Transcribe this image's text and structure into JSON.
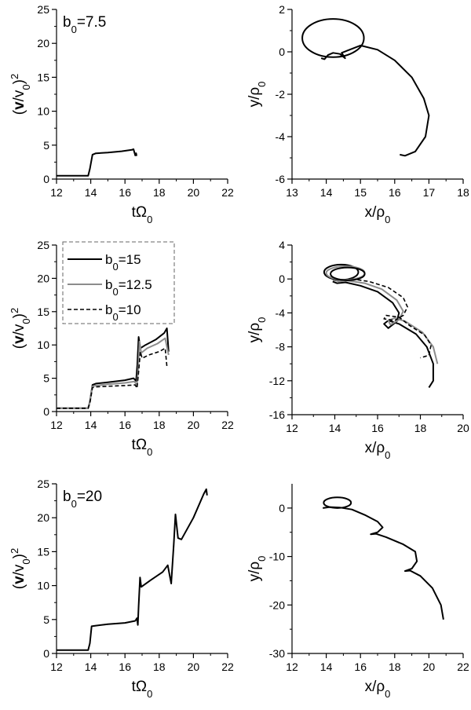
{
  "chart_data": [
    {
      "id": "p1",
      "type": "line",
      "xlabel": {
        "main": "tΩ",
        "sub": "0"
      },
      "ylabel": {
        "main": "(",
        "bold": "v",
        "mid": "/v",
        "sub": "0",
        "end": ")",
        "sup": "2"
      },
      "xlim": [
        12,
        22
      ],
      "ylim": [
        0,
        25
      ],
      "xticks": [
        12,
        14,
        16,
        18,
        20,
        22
      ],
      "yticks": [
        0,
        5,
        10,
        15,
        20,
        25
      ],
      "annotation": {
        "main": "b",
        "sub": "0",
        "rest": "=7.5"
      },
      "series": [
        {
          "style": "solid-black",
          "points": [
            [
              12.0,
              0.5
            ],
            [
              13.85,
              0.5
            ],
            [
              13.95,
              1.5
            ],
            [
              14.1,
              3.6
            ],
            [
              14.3,
              3.8
            ],
            [
              15.0,
              3.9
            ],
            [
              15.8,
              4.1
            ],
            [
              16.4,
              4.3
            ],
            [
              16.5,
              4.4
            ],
            [
              16.6,
              3.5
            ],
            [
              16.65,
              3.8
            ],
            [
              16.68,
              3.4
            ]
          ]
        }
      ]
    },
    {
      "id": "p2",
      "type": "line",
      "xlabel": {
        "main": "x/ρ",
        "sub": "0"
      },
      "ylabel": {
        "main": "y/ρ",
        "sub": "0"
      },
      "xlim": [
        13,
        18
      ],
      "ylim": [
        -6,
        2
      ],
      "xticks": [
        13,
        14,
        15,
        16,
        17,
        18
      ],
      "yticks": [
        -6,
        -4,
        -2,
        0,
        2
      ],
      "series": [
        {
          "style": "solid-black",
          "points": [
            [
              13.85,
              -0.3
            ],
            [
              13.95,
              -0.35
            ],
            [
              14.05,
              -0.15
            ],
            [
              14.2,
              -0.05
            ],
            [
              14.4,
              -0.1
            ],
            [
              14.55,
              -0.3
            ],
            [
              14.45,
              -0.05
            ],
            [
              14.6,
              0.05
            ],
            [
              15.0,
              0.3
            ],
            [
              15.5,
              0.1
            ],
            [
              16.0,
              -0.4
            ],
            [
              16.5,
              -1.2
            ],
            [
              16.85,
              -2.2
            ],
            [
              17.0,
              -3.0
            ],
            [
              16.9,
              -4.0
            ],
            [
              16.6,
              -4.7
            ],
            [
              16.3,
              -4.9
            ],
            [
              16.15,
              -4.85
            ]
          ]
        },
        {
          "style": "solid-black",
          "ellipse": {
            "cx": 14.2,
            "cy": 0.65,
            "rx": 0.9,
            "ry": 0.9
          }
        }
      ]
    },
    {
      "id": "p3",
      "type": "line",
      "xlabel": {
        "main": "tΩ",
        "sub": "0"
      },
      "ylabel": {
        "main": "(",
        "bold": "v",
        "mid": "/v",
        "sub": "0",
        "end": ")",
        "sup": "2"
      },
      "xlim": [
        12,
        22
      ],
      "ylim": [
        0,
        25
      ],
      "xticks": [
        12,
        14,
        16,
        18,
        20,
        22
      ],
      "yticks": [
        0,
        5,
        10,
        15,
        20,
        25
      ],
      "legend": [
        {
          "main": "b",
          "sub": "0",
          "rest": "=15",
          "style": "solid-black"
        },
        {
          "main": "b",
          "sub": "0",
          "rest": "=12.5",
          "style": "solid-gray"
        },
        {
          "main": "b",
          "sub": "0",
          "rest": "=10",
          "style": "dashed-black"
        }
      ],
      "series": [
        {
          "style": "solid-black",
          "points": [
            [
              12.0,
              0.5
            ],
            [
              13.85,
              0.5
            ],
            [
              13.95,
              1.5
            ],
            [
              14.1,
              4.0
            ],
            [
              14.3,
              4.2
            ],
            [
              15.0,
              4.4
            ],
            [
              16.0,
              4.7
            ],
            [
              16.5,
              5.0
            ],
            [
              16.65,
              4.6
            ],
            [
              16.72,
              7.0
            ],
            [
              16.8,
              11.2
            ],
            [
              16.9,
              9.5
            ],
            [
              17.2,
              10.0
            ],
            [
              17.8,
              10.8
            ],
            [
              18.3,
              11.8
            ],
            [
              18.45,
              12.5
            ],
            [
              18.55,
              9.0
            ]
          ]
        },
        {
          "style": "solid-gray",
          "points": [
            [
              12.0,
              0.5
            ],
            [
              13.85,
              0.5
            ],
            [
              13.95,
              1.4
            ],
            [
              14.1,
              3.8
            ],
            [
              14.3,
              3.9
            ],
            [
              15.0,
              4.1
            ],
            [
              16.0,
              4.3
            ],
            [
              16.55,
              4.5
            ],
            [
              16.7,
              4.0
            ],
            [
              16.78,
              6.5
            ],
            [
              16.85,
              10.5
            ],
            [
              16.95,
              8.8
            ],
            [
              17.3,
              9.5
            ],
            [
              17.9,
              10.2
            ],
            [
              18.35,
              11.0
            ],
            [
              18.55,
              8.5
            ]
          ]
        },
        {
          "style": "dashed-black",
          "points": [
            [
              12.0,
              0.5
            ],
            [
              13.85,
              0.5
            ],
            [
              13.95,
              1.3
            ],
            [
              14.1,
              3.6
            ],
            [
              14.3,
              3.7
            ],
            [
              15.0,
              3.8
            ],
            [
              16.0,
              3.9
            ],
            [
              16.6,
              4.0
            ],
            [
              16.7,
              3.5
            ],
            [
              16.8,
              6.0
            ],
            [
              16.9,
              9.0
            ],
            [
              17.0,
              8.0
            ],
            [
              17.4,
              8.5
            ],
            [
              18.0,
              9.0
            ],
            [
              18.35,
              9.5
            ],
            [
              18.45,
              6.8
            ]
          ]
        }
      ]
    },
    {
      "id": "p4",
      "type": "line",
      "xlabel": {
        "main": "x/ρ",
        "sub": "0"
      },
      "ylabel": {
        "main": "y/ρ",
        "sub": "0"
      },
      "xlim": [
        12,
        20
      ],
      "ylim": [
        -16,
        4
      ],
      "xticks": [
        12,
        14,
        16,
        18,
        20
      ],
      "yticks": [
        -16,
        -12,
        -8,
        -4,
        0,
        4
      ],
      "series": [
        {
          "style": "solid-black",
          "points": [
            [
              13.9,
              -0.3
            ],
            [
              14.1,
              -0.5
            ],
            [
              14.5,
              -0.4
            ],
            [
              15.2,
              -0.8
            ],
            [
              16.0,
              -1.5
            ],
            [
              16.7,
              -2.8
            ],
            [
              17.0,
              -4.0
            ],
            [
              16.9,
              -5.0
            ],
            [
              16.5,
              -5.8
            ],
            [
              16.3,
              -5.3
            ],
            [
              16.5,
              -4.9
            ],
            [
              17.0,
              -5.3
            ],
            [
              17.8,
              -6.5
            ],
            [
              18.3,
              -8.0
            ],
            [
              18.6,
              -10.0
            ],
            [
              18.6,
              -12.0
            ],
            [
              18.4,
              -12.8
            ]
          ]
        },
        {
          "style": "solid-gray",
          "points": [
            [
              13.9,
              -0.1
            ],
            [
              14.2,
              -0.3
            ],
            [
              14.6,
              -0.2
            ],
            [
              15.4,
              -0.5
            ],
            [
              16.2,
              -1.2
            ],
            [
              16.9,
              -2.5
            ],
            [
              17.2,
              -3.8
            ],
            [
              17.0,
              -4.8
            ],
            [
              16.6,
              -5.4
            ],
            [
              16.5,
              -4.9
            ],
            [
              16.8,
              -4.6
            ],
            [
              17.3,
              -5.0
            ],
            [
              18.1,
              -6.3
            ],
            [
              18.6,
              -8.0
            ],
            [
              18.8,
              -10.0
            ]
          ]
        },
        {
          "style": "dashed-black",
          "points": [
            [
              13.9,
              0.1
            ],
            [
              14.3,
              -0.1
            ],
            [
              14.8,
              0.0
            ],
            [
              15.6,
              -0.3
            ],
            [
              16.5,
              -1.0
            ],
            [
              17.2,
              -2.2
            ],
            [
              17.4,
              -3.3
            ],
            [
              17.2,
              -4.3
            ],
            [
              16.8,
              -4.9
            ],
            [
              16.3,
              -4.7
            ],
            [
              16.4,
              -4.3
            ],
            [
              17.0,
              -4.5
            ],
            [
              17.5,
              -5.5
            ],
            [
              18.2,
              -6.6
            ],
            [
              18.5,
              -7.8
            ],
            [
              18.4,
              -9.0
            ],
            [
              18.0,
              -9.3
            ]
          ]
        },
        {
          "style": "solid-black",
          "ellipse": {
            "cx": 14.3,
            "cy": 0.8,
            "rx": 0.8,
            "ry": 0.9
          }
        },
        {
          "style": "solid-gray",
          "ellipse": {
            "cx": 14.5,
            "cy": 0.7,
            "rx": 0.9,
            "ry": 0.8
          }
        },
        {
          "style": "solid-black",
          "ellipse": {
            "cx": 14.6,
            "cy": 0.6,
            "rx": 0.8,
            "ry": 0.75
          }
        }
      ]
    },
    {
      "id": "p5",
      "type": "line",
      "xlabel": {
        "main": "tΩ",
        "sub": "0"
      },
      "ylabel": {
        "main": "(",
        "bold": "v",
        "mid": "/v",
        "sub": "0",
        "end": ")",
        "sup": "2"
      },
      "xlim": [
        12,
        22
      ],
      "ylim": [
        0,
        25
      ],
      "xticks": [
        12,
        14,
        16,
        18,
        20,
        22
      ],
      "yticks": [
        0,
        5,
        10,
        15,
        20,
        25
      ],
      "annotation": {
        "main": "b",
        "sub": "0",
        "rest": "=20"
      },
      "series": [
        {
          "style": "solid-black",
          "points": [
            [
              12.0,
              0.5
            ],
            [
              13.85,
              0.5
            ],
            [
              13.95,
              1.5
            ],
            [
              14.05,
              4.0
            ],
            [
              14.3,
              4.1
            ],
            [
              15.0,
              4.3
            ],
            [
              16.0,
              4.5
            ],
            [
              16.6,
              4.8
            ],
            [
              16.7,
              5.2
            ],
            [
              16.75,
              4.2
            ],
            [
              16.8,
              7.0
            ],
            [
              16.88,
              11.2
            ],
            [
              16.95,
              9.8
            ],
            [
              17.5,
              10.8
            ],
            [
              18.2,
              12.0
            ],
            [
              18.5,
              13.0
            ],
            [
              18.7,
              10.3
            ],
            [
              18.85,
              16.0
            ],
            [
              18.95,
              20.5
            ],
            [
              19.1,
              17.0
            ],
            [
              19.3,
              16.8
            ],
            [
              20.0,
              20.0
            ],
            [
              20.6,
              23.5
            ],
            [
              20.75,
              24.2
            ],
            [
              20.8,
              23.3
            ]
          ]
        }
      ]
    },
    {
      "id": "p6",
      "type": "line",
      "xlabel": {
        "main": "x/ρ",
        "sub": "0"
      },
      "ylabel": {
        "main": "y/ρ",
        "sub": "0"
      },
      "xlim": [
        12,
        22
      ],
      "ylim": [
        -30,
        5
      ],
      "xticks": [
        12,
        14,
        16,
        18,
        20,
        22
      ],
      "yticks": [
        -30,
        -20,
        -10,
        0
      ],
      "series": [
        {
          "style": "solid-black",
          "points": [
            [
              13.8,
              0.0
            ],
            [
              14.2,
              0.2
            ],
            [
              14.8,
              0.1
            ],
            [
              15.5,
              -0.3
            ],
            [
              16.3,
              -1.5
            ],
            [
              17.0,
              -2.8
            ],
            [
              17.3,
              -4.0
            ],
            [
              17.0,
              -5.0
            ],
            [
              16.6,
              -5.4
            ],
            [
              16.9,
              -5.3
            ],
            [
              17.5,
              -6.0
            ],
            [
              18.5,
              -7.5
            ],
            [
              19.2,
              -9.0
            ],
            [
              19.3,
              -11.0
            ],
            [
              19.0,
              -12.5
            ],
            [
              18.6,
              -13.0
            ],
            [
              18.9,
              -12.9
            ],
            [
              19.5,
              -14.0
            ],
            [
              20.2,
              -16.5
            ],
            [
              20.7,
              -20.0
            ],
            [
              20.85,
              -23.0
            ]
          ]
        },
        {
          "style": "solid-black",
          "ellipse": {
            "cx": 14.65,
            "cy": 1.1,
            "rx": 0.8,
            "ry": 1.1
          }
        }
      ]
    }
  ]
}
